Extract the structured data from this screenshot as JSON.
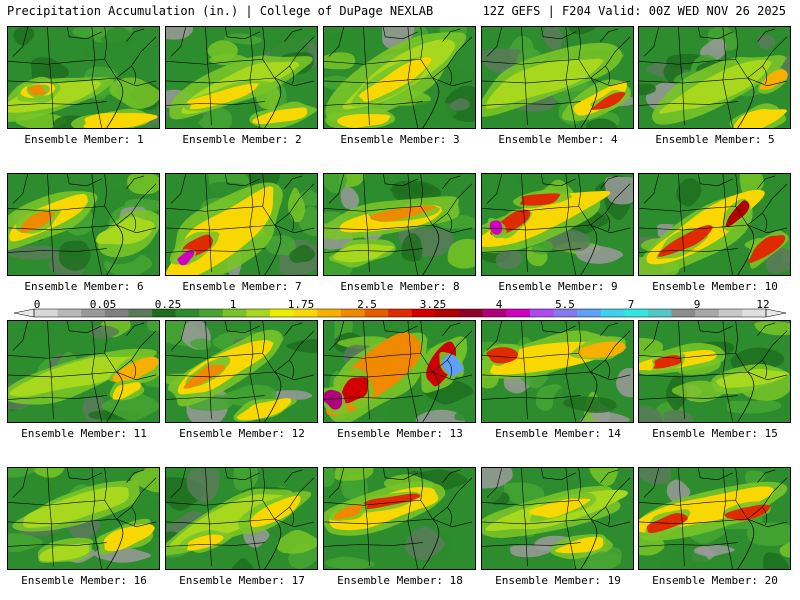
{
  "header": {
    "left": "Precipitation Accumulation (in.) | College of DuPage NEXLAB",
    "right": "12Z GEFS | F204 Valid: 00Z WED NOV 26 2025"
  },
  "colorbar": {
    "labels": [
      "0",
      "0.05",
      "0.25",
      "1",
      "1.75",
      "2.5",
      "3.25",
      "4",
      "5.5",
      "7",
      "9",
      "12"
    ],
    "colors": [
      "#d8d8d8",
      "#b8b8b8",
      "#9a9a9a",
      "#808080",
      "#5a7a5a",
      "#1e6e1e",
      "#2d8c2d",
      "#46a632",
      "#78c428",
      "#a8d81e",
      "#e8f000",
      "#f8d800",
      "#f8b000",
      "#f08800",
      "#e85c00",
      "#e02a00",
      "#d00000",
      "#b00000",
      "#900028",
      "#b0007a",
      "#d000c0",
      "#b048f0",
      "#8878f0",
      "#60a0f8",
      "#40d0f0",
      "#30e8e0",
      "#50c8c8",
      "#8c8c8c",
      "#a8a8a8",
      "#c8c8c8",
      "#e0e0e0"
    ]
  },
  "panels": [
    {
      "label": "Ensemble Member: 1"
    },
    {
      "label": "Ensemble Member: 2"
    },
    {
      "label": "Ensemble Member: 3"
    },
    {
      "label": "Ensemble Member: 4"
    },
    {
      "label": "Ensemble Member: 5"
    },
    {
      "label": "Ensemble Member: 6"
    },
    {
      "label": "Ensemble Member: 7"
    },
    {
      "label": "Ensemble Member: 8"
    },
    {
      "label": "Ensemble Member: 9"
    },
    {
      "label": "Ensemble Member: 10"
    },
    {
      "label": "Ensemble Member: 11"
    },
    {
      "label": "Ensemble Member: 12"
    },
    {
      "label": "Ensemble Member: 13"
    },
    {
      "label": "Ensemble Member: 14"
    },
    {
      "label": "Ensemble Member: 15"
    },
    {
      "label": "Ensemble Member: 16"
    },
    {
      "label": "Ensemble Member: 17"
    },
    {
      "label": "Ensemble Member: 18"
    },
    {
      "label": "Ensemble Member: 19"
    },
    {
      "label": "Ensemble Member: 20"
    }
  ]
}
